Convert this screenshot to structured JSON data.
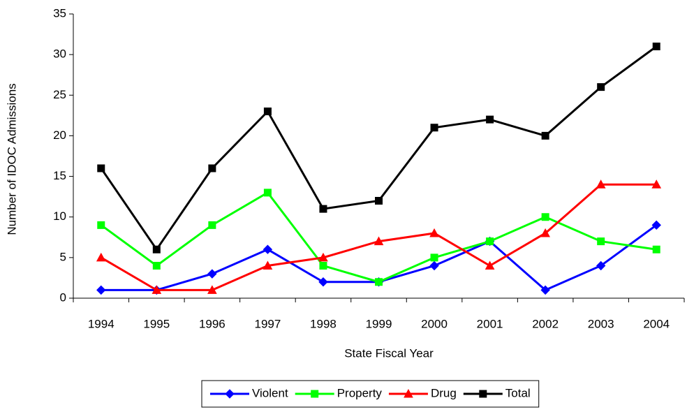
{
  "chart_data": {
    "type": "line",
    "x_label": "State Fiscal Year",
    "y_label": "Number of IDOC Admissions",
    "categories": [
      "1994",
      "1995",
      "1996",
      "1997",
      "1998",
      "1999",
      "2000",
      "2001",
      "2002",
      "2003",
      "2004"
    ],
    "series": [
      {
        "name": "Violent",
        "color": "#0000ff",
        "marker": "diamond",
        "values": [
          1,
          1,
          3,
          6,
          2,
          2,
          4,
          7,
          1,
          4,
          9
        ]
      },
      {
        "name": "Property",
        "color": "#00ff00",
        "marker": "square",
        "values": [
          9,
          4,
          9,
          13,
          4,
          2,
          5,
          7,
          10,
          7,
          6
        ]
      },
      {
        "name": "Drug",
        "color": "#ff0000",
        "marker": "triangle",
        "values": [
          5,
          1,
          1,
          4,
          5,
          7,
          8,
          4,
          8,
          14,
          14
        ]
      },
      {
        "name": "Total",
        "color": "#000000",
        "marker": "square",
        "values": [
          16,
          6,
          16,
          23,
          11,
          12,
          21,
          22,
          20,
          26,
          31
        ]
      }
    ],
    "ylim": [
      0,
      35
    ],
    "yticks": [
      0,
      5,
      10,
      15,
      20,
      25,
      30,
      35
    ],
    "grid": false,
    "legend": "bottom"
  }
}
